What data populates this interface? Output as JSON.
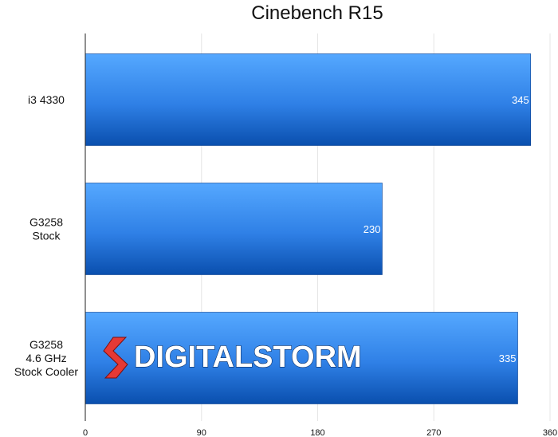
{
  "chart_data": {
    "type": "bar",
    "orientation": "horizontal",
    "title": "Cinebench R15",
    "categories": [
      [
        "i3 4330"
      ],
      [
        "G3258",
        "Stock"
      ],
      [
        "G3258",
        "4.6 GHz",
        "Stock Cooler"
      ]
    ],
    "values": [
      345,
      230,
      335
    ],
    "xlim": [
      0,
      360
    ],
    "xticks": [
      "0",
      "90",
      "180",
      "270",
      "360"
    ],
    "grid": "vertical",
    "bar_color": "#2f80e6",
    "bar_color_light": "#55a8ff",
    "bar_color_dark": "#0a4fae"
  },
  "watermark": {
    "text": "DIGITALSTORM",
    "icon": "digital-storm-s-logo",
    "icon_color": "#e53935"
  }
}
